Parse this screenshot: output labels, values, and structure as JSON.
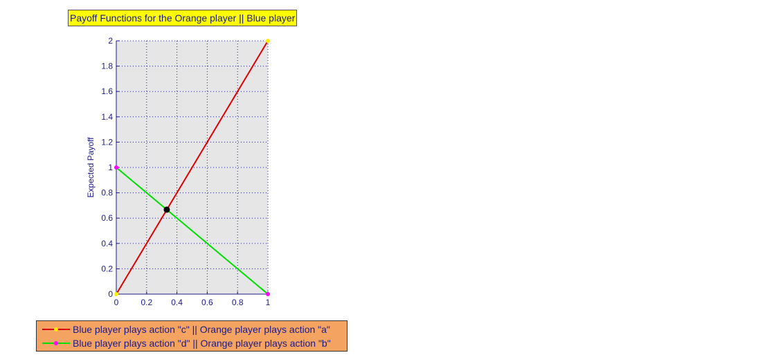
{
  "chart_data": {
    "type": "line",
    "title": "Payoff Functions for the Orange player || Blue player",
    "xlabel": "",
    "ylabel": "Expected Payoff",
    "xlim": [
      0,
      1
    ],
    "ylim": [
      0,
      2
    ],
    "xticks": [
      "0",
      "0.2",
      "0.4",
      "0.6",
      "0.8",
      "1"
    ],
    "yticks": [
      "0",
      "0.2",
      "0.4",
      "0.6",
      "0.8",
      "1",
      "1.2",
      "1.4",
      "1.6",
      "1.8",
      "2"
    ],
    "grid": true,
    "legend_position": "bottom",
    "series": [
      {
        "name": "Blue player plays action \"c\" || Orange player plays action \"a\"",
        "x": [
          0,
          1
        ],
        "y": [
          0,
          2
        ],
        "color": "#dd0000",
        "marker_color": "#ffee00"
      },
      {
        "name": "Blue player plays action \"d\" || Orange player plays action \"b\"",
        "x": [
          0,
          1
        ],
        "y": [
          1,
          0
        ],
        "color": "#00dd00",
        "marker_color": "#ff00ff"
      }
    ],
    "intersection": {
      "x": 0.333,
      "y": 0.667,
      "color": "#000000"
    }
  },
  "colors": {
    "plot_background": "#e6e6e6",
    "axis": "#1a1a8c",
    "title_background": "#ffff00",
    "legend_background": "#f4a460"
  }
}
